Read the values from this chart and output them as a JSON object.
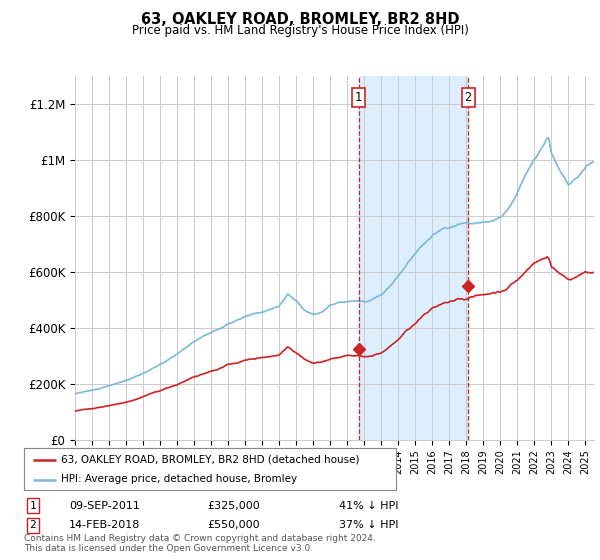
{
  "title": "63, OAKLEY ROAD, BROMLEY, BR2 8HD",
  "subtitle": "Price paid vs. HM Land Registry's House Price Index (HPI)",
  "ylabel_ticks": [
    "£0",
    "£200K",
    "£400K",
    "£600K",
    "£800K",
    "£1M",
    "£1.2M"
  ],
  "ytick_values": [
    0,
    200000,
    400000,
    600000,
    800000,
    1000000,
    1200000
  ],
  "ylim": [
    0,
    1300000
  ],
  "event1_year": 2011.67,
  "event2_year": 2018.1,
  "event1_price": 325000,
  "event2_price": 550000,
  "event1_label": "1",
  "event2_label": "2",
  "legend_entries": [
    "63, OAKLEY ROAD, BROMLEY, BR2 8HD (detached house)",
    "HPI: Average price, detached house, Bromley"
  ],
  "footer_line1": "Contains HM Land Registry data © Crown copyright and database right 2024.",
  "footer_line2": "This data is licensed under the Open Government Licence v3.0.",
  "annotation_rows": [
    [
      "1",
      "09-SEP-2011",
      "£325,000",
      "41% ↓ HPI"
    ],
    [
      "2",
      "14-FEB-2018",
      "£550,000",
      "37% ↓ HPI"
    ]
  ],
  "hpi_color": "#7ab8d9",
  "price_color": "#cc2222",
  "shade_color": "#ddeeff",
  "bg_color": "#ffffff",
  "grid_color": "#cccccc"
}
